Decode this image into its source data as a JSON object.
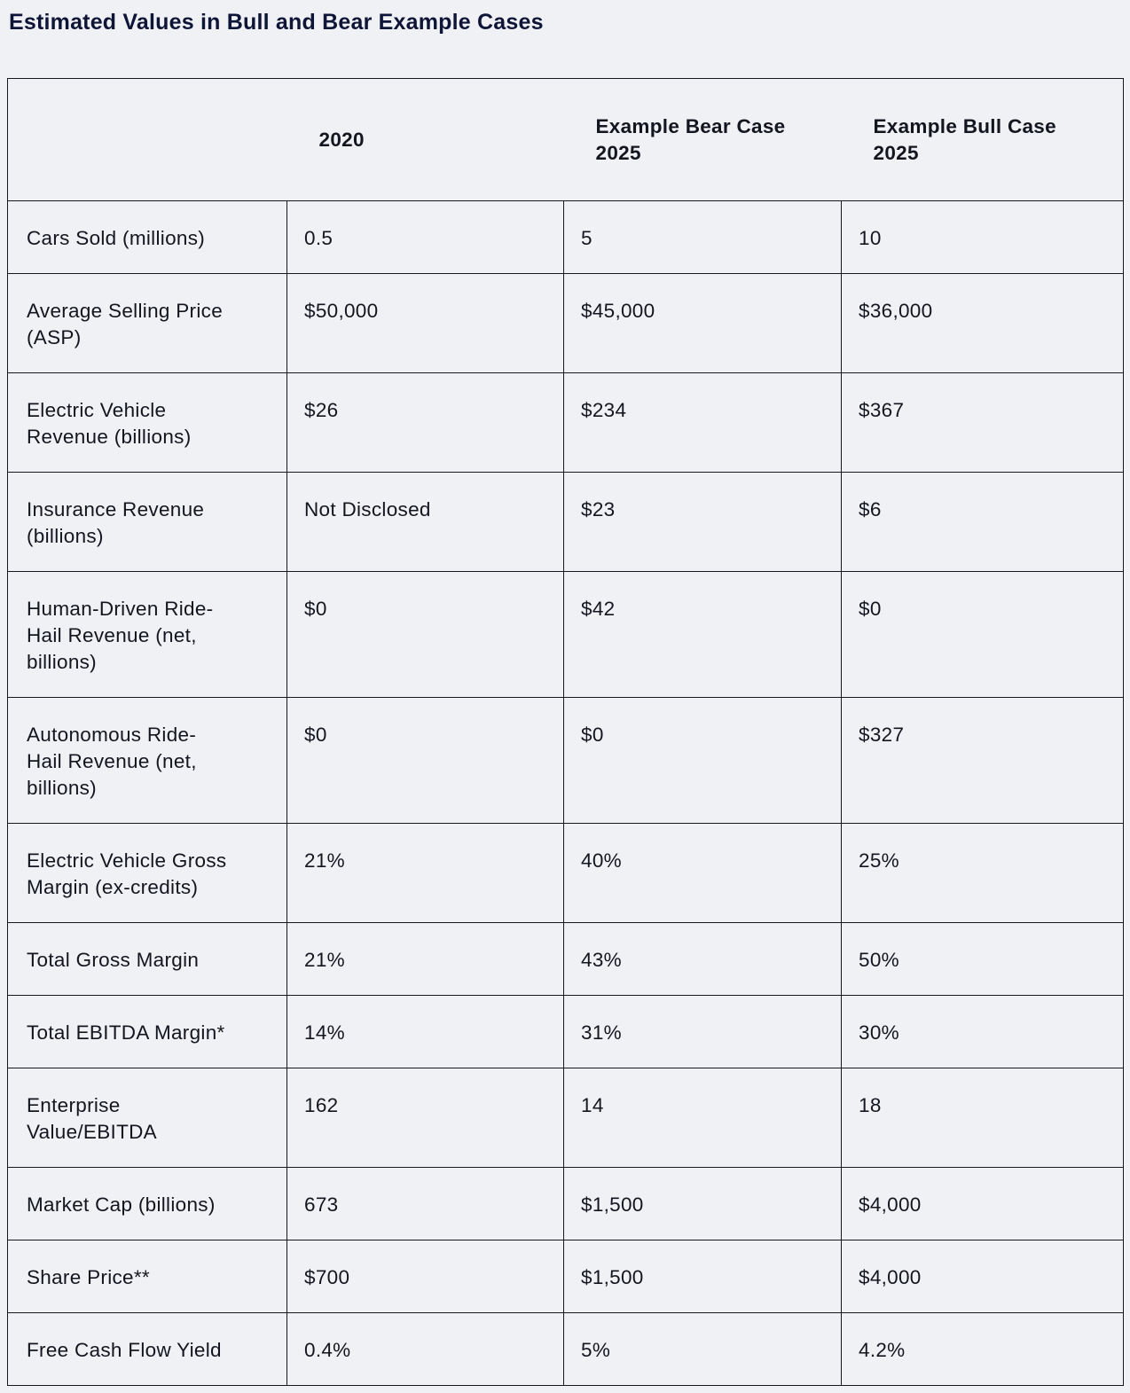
{
  "page": {
    "title": "Estimated Values in Bull and Bear Example Cases"
  },
  "colors": {
    "page_background": "#f0f1f5",
    "border": "#17171f",
    "title_text": "#0f1536",
    "body_text": "#14161f"
  },
  "table": {
    "columns": [
      {
        "label": ""
      },
      {
        "label": "2020"
      },
      {
        "label": "Example Bear Case\n2025"
      },
      {
        "label": "Example Bull Case\n2025"
      }
    ],
    "rows": [
      {
        "label": "Cars Sold (millions)",
        "values": [
          "0.5",
          "5",
          "10"
        ]
      },
      {
        "label": "Average Selling Price\n(ASP)",
        "values": [
          "$50,000",
          "$45,000",
          "$36,000"
        ]
      },
      {
        "label": "Electric Vehicle\nRevenue (billions)",
        "values": [
          "$26",
          "$234",
          "$367"
        ]
      },
      {
        "label": "Insurance Revenue\n(billions)",
        "values": [
          "Not Disclosed",
          "$23",
          "$6"
        ]
      },
      {
        "label": "Human-Driven Ride-\nHail Revenue (net,\nbillions)",
        "values": [
          "$0",
          "$42",
          "$0"
        ]
      },
      {
        "label": "Autonomous Ride-\nHail Revenue (net,\nbillions)",
        "values": [
          "$0",
          "$0",
          "$327"
        ]
      },
      {
        "label": "Electric Vehicle Gross\nMargin (ex-credits)",
        "values": [
          "21%",
          "40%",
          "25%"
        ]
      },
      {
        "label": "Total Gross Margin",
        "values": [
          "21%",
          "43%",
          "50%"
        ]
      },
      {
        "label": "Total EBITDA Margin*",
        "values": [
          "14%",
          "31%",
          "30%"
        ]
      },
      {
        "label": "Enterprise\nValue/EBITDA",
        "values": [
          "162",
          "14",
          "18"
        ]
      },
      {
        "label": "Market Cap (billions)",
        "values": [
          "673",
          "$1,500",
          "$4,000"
        ]
      },
      {
        "label": "Share Price**",
        "values": [
          "$700",
          "$1,500",
          "$4,000"
        ]
      },
      {
        "label": "Free Cash Flow Yield",
        "values": [
          "0.4%",
          "5%",
          "4.2%"
        ]
      }
    ]
  },
  "chart_data": {
    "type": "table",
    "title": "Estimated Values in Bull and Bear Example Cases",
    "columns": [
      "",
      "2020",
      "Example Bear Case 2025",
      "Example Bull Case 2025"
    ],
    "rows": [
      [
        "Cars Sold (millions)",
        "0.5",
        "5",
        "10"
      ],
      [
        "Average Selling Price (ASP)",
        "$50,000",
        "$45,000",
        "$36,000"
      ],
      [
        "Electric Vehicle Revenue (billions)",
        "$26",
        "$234",
        "$367"
      ],
      [
        "Insurance Revenue (billions)",
        "Not Disclosed",
        "$23",
        "$6"
      ],
      [
        "Human-Driven Ride-Hail Revenue (net, billions)",
        "$0",
        "$42",
        "$0"
      ],
      [
        "Autonomous Ride-Hail Revenue (net, billions)",
        "$0",
        "$0",
        "$327"
      ],
      [
        "Electric Vehicle Gross Margin (ex-credits)",
        "21%",
        "40%",
        "25%"
      ],
      [
        "Total Gross Margin",
        "21%",
        "43%",
        "50%"
      ],
      [
        "Total EBITDA Margin*",
        "14%",
        "31%",
        "30%"
      ],
      [
        "Enterprise Value/EBITDA",
        "162",
        "14",
        "18"
      ],
      [
        "Market Cap (billions)",
        "673",
        "$1,500",
        "$4,000"
      ],
      [
        "Share Price**",
        "$700",
        "$1,500",
        "$4,000"
      ],
      [
        "Free Cash Flow Yield",
        "0.4%",
        "5%",
        "4.2%"
      ]
    ]
  }
}
